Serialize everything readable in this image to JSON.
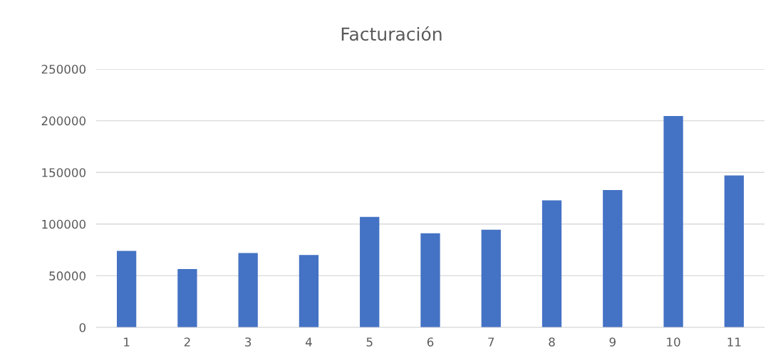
{
  "chart_data": {
    "type": "bar",
    "title": "Facturación",
    "categories": [
      "1",
      "2",
      "3",
      "4",
      "5",
      "6",
      "7",
      "8",
      "9",
      "10",
      "11"
    ],
    "values": [
      74000,
      56500,
      72000,
      70000,
      107000,
      91000,
      94500,
      123000,
      133000,
      204500,
      147000
    ],
    "color": "#4472c4",
    "ylim": [
      0,
      250000
    ],
    "yticks": [
      0,
      50000,
      100000,
      150000,
      200000,
      250000
    ],
    "grid": "y"
  }
}
